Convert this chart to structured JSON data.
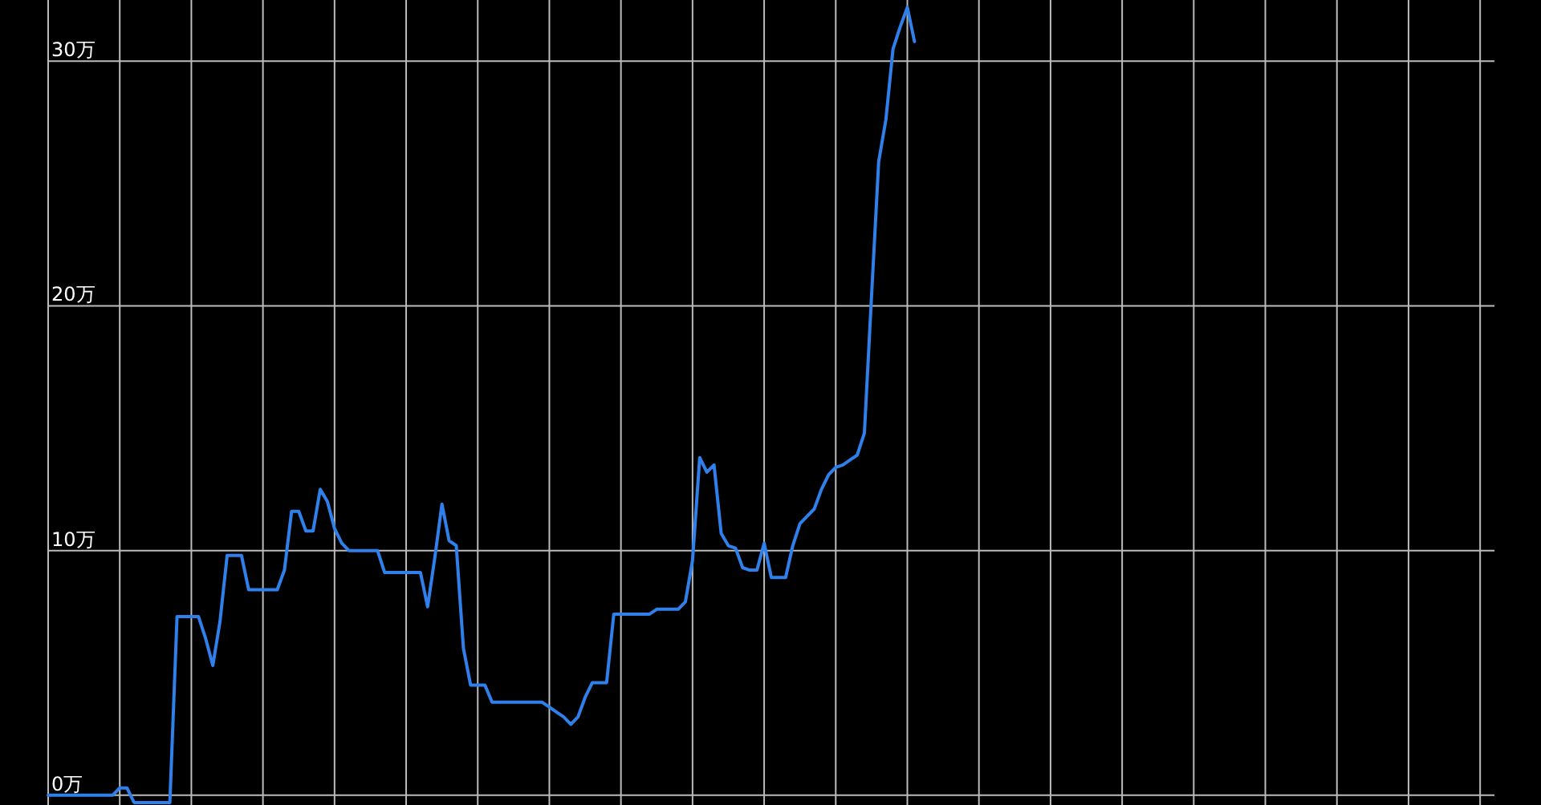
{
  "chart_data": {
    "type": "line",
    "grid": true,
    "ylim": [
      -0.4,
      32.5
    ],
    "yticks": [
      {
        "value": 0,
        "label": "0万"
      },
      {
        "value": 10,
        "label": "10万"
      },
      {
        "value": 20,
        "label": "20万"
      },
      {
        "value": 30,
        "label": "30万"
      }
    ],
    "categories": [
      null,
      null,
      null,
      null,
      null,
      null,
      null,
      null,
      null,
      null,
      null,
      null,
      null,
      null,
      null,
      null,
      null,
      null,
      null,
      null,
      null,
      null,
      null,
      null,
      null,
      null,
      null,
      null,
      null,
      null,
      null,
      null,
      null,
      null,
      null,
      null,
      null,
      null,
      null,
      null,
      null,
      null,
      null,
      null,
      null,
      null,
      null,
      null,
      null,
      null,
      null,
      null,
      null,
      null,
      null,
      null,
      null,
      null,
      null,
      null,
      null,
      null,
      null,
      null,
      null,
      null,
      null,
      null,
      null,
      null,
      null,
      null,
      null,
      null,
      null,
      null,
      null,
      null,
      null,
      null,
      null,
      null,
      null,
      null,
      null,
      null,
      null,
      null,
      null,
      null,
      null,
      null,
      null,
      null,
      null,
      null,
      null,
      null,
      null,
      null,
      null,
      null,
      null,
      null,
      null,
      null,
      null,
      null,
      null,
      null,
      null,
      null,
      null,
      null,
      null,
      null,
      null,
      null,
      null,
      null,
      null,
      null,
      null,
      null,
      null,
      null,
      null,
      null,
      null,
      null,
      null,
      null,
      null,
      null,
      null,
      null,
      null,
      null,
      null,
      null,
      null,
      null,
      null,
      null,
      null,
      null,
      null,
      null,
      null,
      null,
      null,
      null,
      null,
      null,
      null,
      null,
      null,
      null,
      null,
      null,
      null,
      null,
      null,
      null,
      null,
      null,
      null,
      null,
      null,
      null,
      null,
      null,
      null,
      null,
      null,
      null,
      null,
      null,
      null,
      null,
      null,
      null,
      null,
      null,
      null,
      null,
      null,
      null,
      null,
      null,
      null,
      null,
      null,
      null,
      null,
      null,
      null,
      null,
      null,
      null,
      null,
      null,
      null
    ],
    "series": [
      {
        "color": "#2f80ea",
        "values": [
          0,
          0,
          0,
          0,
          0,
          0,
          0,
          0,
          0,
          0,
          0.3,
          0.3,
          -0.3,
          -0.3,
          -0.3,
          -0.3,
          -0.3,
          -0.3,
          7.3,
          7.3,
          7.3,
          7.3,
          6.4,
          5.3,
          7.1,
          9.8,
          9.8,
          9.8,
          8.4,
          8.4,
          8.4,
          8.4,
          8.4,
          9.2,
          11.6,
          11.6,
          10.8,
          10.8,
          12.5,
          12.0,
          10.9,
          10.3,
          10.0,
          10.0,
          10.0,
          10.0,
          10.0,
          9.1,
          9.1,
          9.1,
          9.1,
          9.1,
          9.1,
          7.7,
          9.7,
          11.9,
          10.4,
          10.2,
          6.0,
          4.5,
          4.5,
          4.5,
          3.8,
          3.8,
          3.8,
          3.8,
          3.8,
          3.8,
          3.8,
          3.8,
          3.6,
          3.4,
          3.2,
          2.9,
          3.2,
          4.0,
          4.6,
          4.6,
          4.6,
          7.4,
          7.4,
          7.4,
          7.4,
          7.4,
          7.4,
          7.6,
          7.6,
          7.6,
          7.6,
          7.9,
          9.6,
          13.8,
          13.2,
          13.5,
          10.7,
          10.2,
          10.1,
          9.3,
          9.2,
          9.2,
          10.3,
          8.9,
          8.9,
          8.9,
          10.2,
          11.1,
          11.4,
          11.7,
          12.5,
          13.1,
          13.4,
          13.5,
          13.7,
          13.9,
          14.8,
          20.4,
          25.9,
          27.6,
          30.5,
          31.4,
          32.2,
          30.8,
          null,
          null,
          null,
          null,
          null,
          null,
          null,
          null,
          null,
          null,
          null,
          null,
          null,
          null,
          null,
          null,
          null,
          null,
          null,
          null,
          null,
          null,
          null,
          null,
          null,
          null,
          null,
          null,
          null,
          null,
          null,
          null,
          null,
          null,
          null,
          null,
          null,
          null,
          null,
          null,
          null,
          null,
          null,
          null,
          null,
          null,
          null,
          null,
          null,
          null,
          null,
          null,
          null,
          null,
          null,
          null,
          null,
          null,
          null,
          null,
          null,
          null,
          null,
          null,
          null,
          null,
          null,
          null,
          null,
          null,
          null,
          null,
          null,
          null,
          null,
          null,
          null,
          null,
          null,
          null,
          null
        ]
      }
    ]
  }
}
